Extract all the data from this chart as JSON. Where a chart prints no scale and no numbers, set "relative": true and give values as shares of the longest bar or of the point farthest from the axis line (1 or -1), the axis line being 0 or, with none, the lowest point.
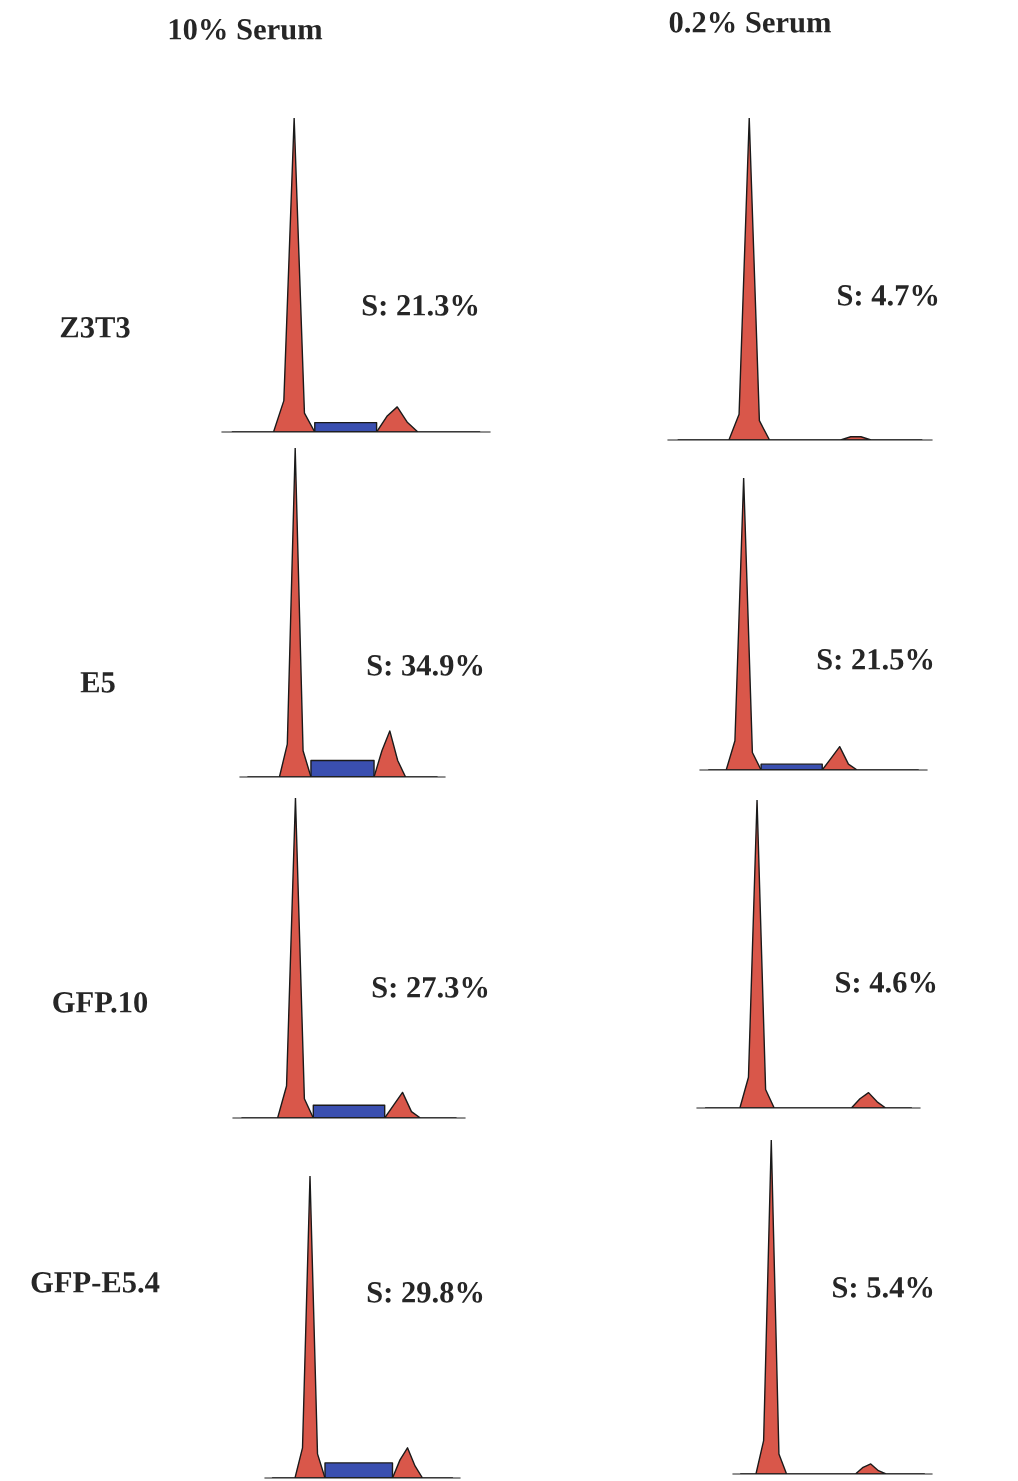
{
  "chart_data": [
    {
      "type": "other",
      "annotations": [
        "10% Serum",
        "0.2% Serum",
        "Z3T3",
        "E5",
        "GFP.10",
        "GFP-E5.4"
      ]
    },
    {
      "type": "area",
      "relative": true,
      "annotations": [
        "S: 21.3%"
      ],
      "categories": [
        null,
        null,
        null,
        null,
        null,
        null,
        null,
        null,
        null,
        null,
        null,
        null,
        null,
        null,
        null,
        null,
        null,
        null,
        null,
        null,
        null,
        null,
        null,
        null,
        null
      ],
      "series": [
        {
          "color": "#3a4fb0",
          "values": [
            null,
            null,
            null,
            null,
            null,
            null,
            null,
            null,
            0.03,
            0.03,
            0.03,
            0.03,
            0.03,
            0.03,
            0.03,
            null,
            null,
            null,
            null,
            null,
            null,
            null,
            null,
            null,
            null
          ]
        },
        {
          "color": "#d9574a",
          "values": [
            0,
            0,
            0,
            0,
            0,
            0.1,
            1,
            0.06,
            0,
            0,
            0,
            0,
            0,
            0,
            0,
            0.05,
            0.08,
            0.03,
            0,
            0,
            0,
            0,
            0,
            0,
            0
          ]
        }
      ]
    },
    {
      "type": "area",
      "relative": true,
      "annotations": [
        "S: 4.7%"
      ],
      "categories": [
        null,
        null,
        null,
        null,
        null,
        null,
        null,
        null,
        null,
        null,
        null,
        null,
        null,
        null,
        null,
        null,
        null,
        null,
        null,
        null,
        null,
        null,
        null,
        null,
        null
      ],
      "series": [
        {
          "color": "#d9574a",
          "values": [
            0,
            0,
            0,
            0,
            0,
            0,
            0.08,
            1,
            0.06,
            0,
            0,
            0,
            0,
            0,
            0,
            0,
            0,
            0.01,
            0.01,
            0,
            0,
            0,
            0,
            0,
            0
          ]
        }
      ]
    },
    {
      "type": "area",
      "relative": true,
      "annotations": [
        "S: 34.9%"
      ],
      "categories": [
        null,
        null,
        null,
        null,
        null,
        null,
        null,
        null,
        null,
        null,
        null,
        null,
        null,
        null,
        null,
        null,
        null,
        null,
        null,
        null,
        null,
        null,
        null,
        null,
        null
      ],
      "series": [
        {
          "color": "#3a4fb0",
          "values": [
            null,
            null,
            null,
            null,
            null,
            null,
            null,
            null,
            0.05,
            0.05,
            0.05,
            0.05,
            0.05,
            0.05,
            0.05,
            0.05,
            0.05,
            null,
            null,
            null,
            null,
            null,
            null,
            null,
            null
          ]
        },
        {
          "color": "#d9574a",
          "values": [
            0,
            0,
            0,
            0,
            0,
            0.1,
            1,
            0.08,
            0,
            0,
            0,
            0,
            0,
            0,
            0,
            0,
            0,
            0.08,
            0.14,
            0.05,
            0,
            0,
            0,
            0,
            0
          ]
        }
      ]
    },
    {
      "type": "area",
      "relative": true,
      "annotations": [
        "S: 21.5%"
      ],
      "categories": [
        null,
        null,
        null,
        null,
        null,
        null,
        null,
        null,
        null,
        null,
        null,
        null,
        null,
        null,
        null,
        null,
        null,
        null,
        null,
        null,
        null,
        null,
        null,
        null,
        null
      ],
      "series": [
        {
          "color": "#3a4fb0",
          "values": [
            null,
            null,
            null,
            null,
            null,
            null,
            0.02,
            0.02,
            0.02,
            0.02,
            0.02,
            0.02,
            0.02,
            0.02,
            null,
            null,
            null,
            null,
            null,
            null,
            null,
            null,
            null,
            null,
            null
          ]
        },
        {
          "color": "#d9574a",
          "values": [
            0,
            0,
            0,
            0.1,
            1,
            0.06,
            0,
            0,
            0,
            0,
            0,
            0,
            0,
            0,
            0.04,
            0.08,
            0.02,
            0,
            0,
            0,
            0,
            0,
            0,
            0,
            0
          ]
        }
      ]
    },
    {
      "type": "area",
      "relative": true,
      "annotations": [
        "S: 27.3%"
      ],
      "categories": [
        null,
        null,
        null,
        null,
        null,
        null,
        null,
        null,
        null,
        null,
        null,
        null,
        null,
        null,
        null,
        null,
        null,
        null,
        null,
        null,
        null,
        null,
        null,
        null,
        null
      ],
      "series": [
        {
          "color": "#3a4fb0",
          "values": [
            null,
            null,
            null,
            null,
            null,
            null,
            null,
            null,
            0.04,
            0.04,
            0.04,
            0.04,
            0.04,
            0.04,
            0.04,
            0.04,
            0.04,
            null,
            null,
            null,
            null,
            null,
            null,
            null,
            null
          ]
        },
        {
          "color": "#d9574a",
          "values": [
            0,
            0,
            0,
            0,
            0,
            0.1,
            1,
            0.06,
            0,
            0,
            0,
            0,
            0,
            0,
            0,
            0,
            0,
            0.04,
            0.08,
            0.02,
            0,
            0,
            0,
            0,
            0
          ]
        }
      ]
    },
    {
      "type": "area",
      "relative": true,
      "annotations": [
        "S: 4.6%"
      ],
      "categories": [
        null,
        null,
        null,
        null,
        null,
        null,
        null,
        null,
        null,
        null,
        null,
        null,
        null,
        null,
        null,
        null,
        null,
        null,
        null,
        null,
        null,
        null,
        null,
        null,
        null
      ],
      "series": [
        {
          "color": "#d9574a",
          "values": [
            0,
            0,
            0,
            0,
            0,
            0.1,
            1,
            0.06,
            0,
            0,
            0,
            0,
            0,
            0,
            0,
            0,
            0,
            0,
            0.03,
            0.05,
            0.02,
            0,
            0,
            0,
            0
          ]
        }
      ]
    },
    {
      "type": "area",
      "relative": true,
      "annotations": [
        "S: 29.8%"
      ],
      "categories": [
        null,
        null,
        null,
        null,
        null,
        null,
        null,
        null,
        null,
        null,
        null,
        null,
        null,
        null,
        null,
        null,
        null,
        null,
        null,
        null,
        null,
        null,
        null,
        null,
        null
      ],
      "series": [
        {
          "color": "#3a4fb0",
          "values": [
            null,
            null,
            null,
            null,
            null,
            null,
            null,
            0.05,
            0.05,
            0.05,
            0.05,
            0.05,
            0.05,
            0.05,
            0.05,
            0.05,
            0.05,
            null,
            null,
            null,
            null,
            null,
            null,
            null,
            null
          ]
        },
        {
          "color": "#d9574a",
          "values": [
            0,
            0,
            0,
            0,
            0.1,
            1,
            0.08,
            0,
            0,
            0,
            0,
            0,
            0,
            0,
            0,
            0,
            0,
            0.06,
            0.1,
            0.04,
            0,
            0,
            0,
            0,
            0
          ]
        }
      ]
    },
    {
      "type": "area",
      "relative": true,
      "annotations": [
        "S: 5.4%"
      ],
      "categories": [
        null,
        null,
        null,
        null,
        null,
        null,
        null,
        null,
        null,
        null,
        null,
        null,
        null,
        null,
        null,
        null,
        null,
        null,
        null,
        null,
        null,
        null,
        null,
        null,
        null
      ],
      "series": [
        {
          "color": "#d9574a",
          "values": [
            0,
            0,
            0,
            0.1,
            1,
            0.06,
            0,
            0,
            0,
            0,
            0,
            0,
            0,
            0,
            0,
            0,
            0.02,
            0.03,
            0.01,
            0,
            0,
            0,
            0,
            0,
            0
          ]
        }
      ]
    }
  ]
}
